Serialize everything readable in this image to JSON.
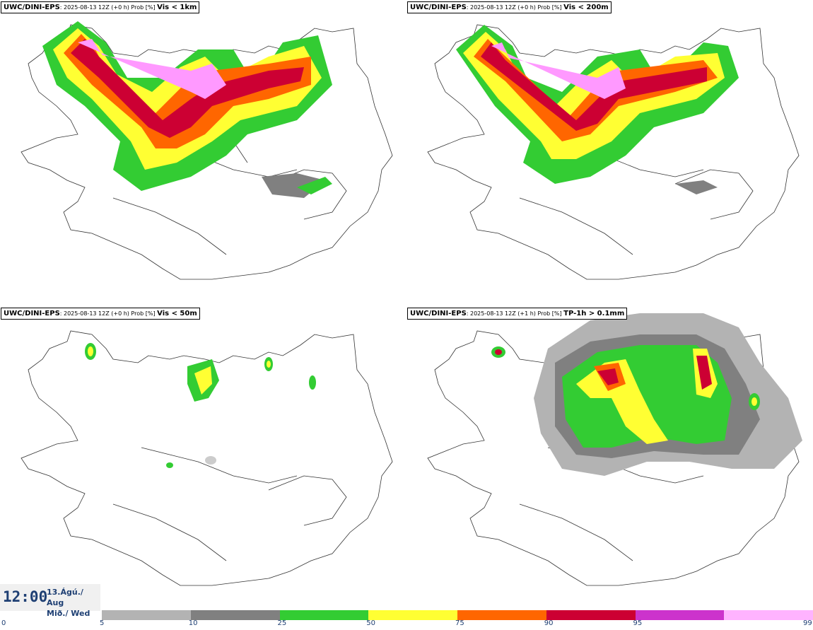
{
  "panels": [
    {
      "model": "UWC/DINI-EPS",
      "run": ": 2025-08-13 12Z (+0 h) Prob [%] ",
      "variable": "Vis < 1km"
    },
    {
      "model": "UWC/DINI-EPS",
      "run": ": 2025-08-13 12Z (+0 h) Prob [%] ",
      "variable": "Vis < 200m"
    },
    {
      "model": "UWC/DINI-EPS",
      "run": ": 2025-08-13 12Z (+0 h) Prob [%] ",
      "variable": "Vis < 50m"
    },
    {
      "model": "UWC/DINI-EPS",
      "run": ": 2025-08-13 12Z (+1 h) Prob [%] ",
      "variable": "TP-1h > 0.1mm"
    }
  ],
  "time": {
    "clock": "12:00",
    "date_line1": "13.Ágú./ Aug",
    "date_line2": "Mið./ Wed"
  },
  "colorbar": {
    "labels": [
      "0",
      "5",
      "10",
      "25",
      "50",
      "75",
      "90",
      "95",
      "99"
    ],
    "colors": [
      "#b3b3b3",
      "#808080",
      "#33cc33",
      "#ffff33",
      "#ff6600",
      "#cc0033",
      "#cc33cc",
      "#ffb3ff"
    ]
  }
}
